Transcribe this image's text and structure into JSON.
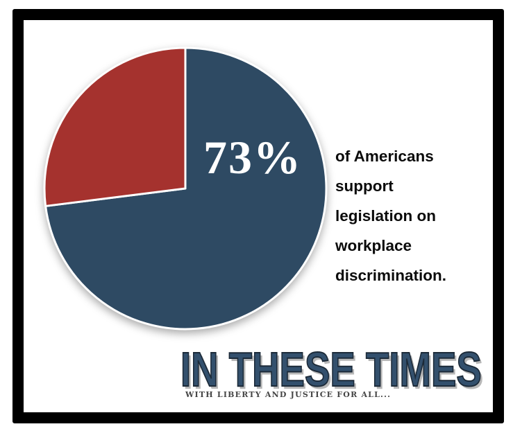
{
  "frame": {
    "border_color": "#000000",
    "background_color": "#FFFFFF"
  },
  "chart_data": {
    "type": "pie",
    "title": "",
    "start_angle_deg": 0,
    "direction": "clockwise",
    "segments": [
      {
        "label": "73%",
        "value": 73,
        "color": "#2E4A63"
      },
      {
        "label": "",
        "value": 27,
        "color": "#A5322E"
      }
    ],
    "separator_color": "#FFFFFF",
    "center_label": "73%",
    "center_label_color": "#FFFFFF",
    "legend": "none",
    "caption_text": "of Americans support legislation on workplace discrimination.",
    "caption_lines": [
      "of Americans",
      "support",
      "legislation on",
      "workplace",
      "discrimination."
    ],
    "caption_color": "#0B0B0B"
  },
  "branding": {
    "title": "IN THESE TIMES",
    "title_color": "#33506D",
    "title_outline_color": "#1C2A38",
    "tagline": "WITH LIBERTY AND JUSTICE FOR ALL...",
    "tagline_color": "#454545"
  }
}
